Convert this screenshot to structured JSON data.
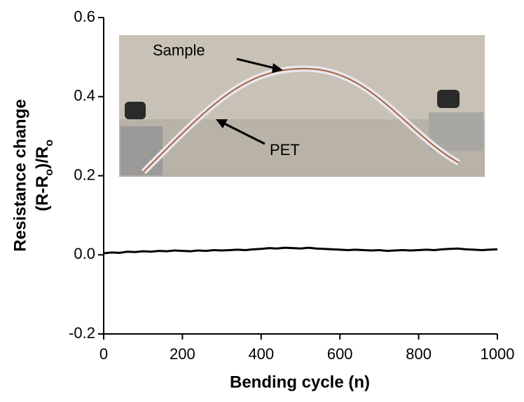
{
  "chart_data": {
    "type": "line",
    "xlabel": "Bending cycle (n)",
    "ylabel": {
      "line1": "Resistance change",
      "line2": [
        {
          "text": "(R-R"
        },
        {
          "text": "o",
          "sub": true
        },
        {
          "text": ")/R"
        },
        {
          "text": "o",
          "sub": true
        }
      ]
    },
    "annotations": [
      "Sample",
      "PET"
    ],
    "x": [
      0,
      20,
      40,
      60,
      80,
      100,
      120,
      140,
      160,
      180,
      200,
      220,
      240,
      260,
      280,
      300,
      320,
      340,
      360,
      380,
      400,
      420,
      440,
      460,
      480,
      500,
      520,
      540,
      560,
      580,
      600,
      620,
      640,
      660,
      680,
      700,
      720,
      740,
      760,
      780,
      800,
      820,
      840,
      860,
      880,
      900,
      920,
      940,
      960,
      980,
      1000
    ],
    "series": [
      {
        "name": "Resistance change",
        "color": "#000000",
        "values": [
          0.004,
          0.006,
          0.005,
          0.008,
          0.007,
          0.009,
          0.008,
          0.01,
          0.009,
          0.011,
          0.01,
          0.009,
          0.011,
          0.01,
          0.012,
          0.011,
          0.012,
          0.013,
          0.012,
          0.014,
          0.015,
          0.017,
          0.016,
          0.018,
          0.017,
          0.016,
          0.018,
          0.016,
          0.015,
          0.014,
          0.013,
          0.012,
          0.013,
          0.012,
          0.011,
          0.012,
          0.01,
          0.011,
          0.012,
          0.011,
          0.012,
          0.013,
          0.012,
          0.014,
          0.015,
          0.016,
          0.014,
          0.013,
          0.012,
          0.013,
          0.014
        ]
      }
    ],
    "xlim": [
      0,
      1000
    ],
    "xticks": [
      0,
      200,
      400,
      600,
      800,
      1000
    ],
    "ylim": [
      -0.2,
      0.6
    ],
    "yticks": [
      -0.2,
      {
        "value": 0,
        "label": "0.0"
      },
      0.2,
      0.4,
      0.6
    ]
  }
}
